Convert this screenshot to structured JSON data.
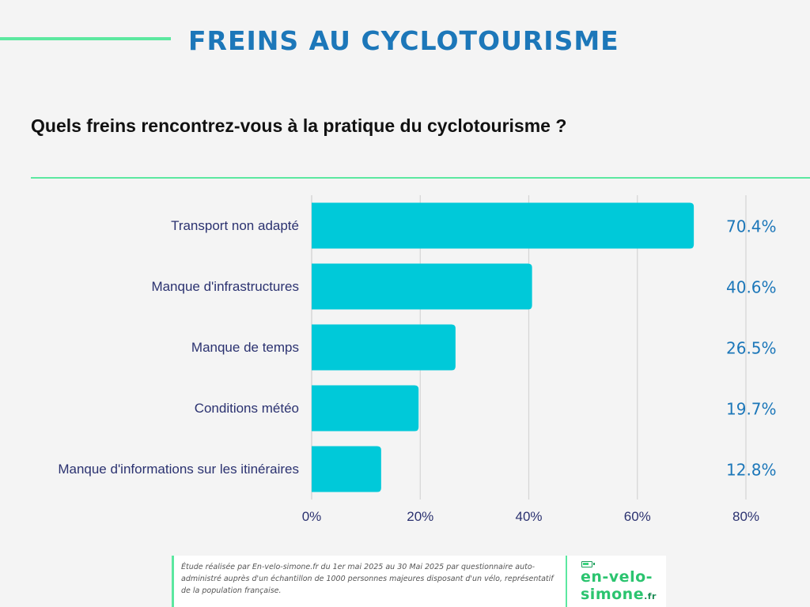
{
  "header": {
    "title": "FREINS AU CYCLOTOURISME"
  },
  "question": {
    "text": "Quels freins rencontrez-vous à la pratique du cyclotourisme ?"
  },
  "chart_data": {
    "type": "bar",
    "orientation": "horizontal",
    "categories": [
      "Transport non adapté",
      "Manque d'infrastructures",
      "Manque de temps",
      "Conditions météo",
      "Manque d'informations sur les itinéraires"
    ],
    "values": [
      70.4,
      40.6,
      26.5,
      19.7,
      12.8
    ],
    "value_labels": [
      "70.4%",
      "40.6%",
      "26.5%",
      "19.7%",
      "12.8%"
    ],
    "xticks": [
      "0%",
      "20%",
      "40%",
      "60%",
      "80%"
    ],
    "xlim": [
      0,
      80
    ],
    "grid": true,
    "legend": "none",
    "bar_color": "#00c9d9",
    "value_label_color": "#1c77b9",
    "category_label_color": "#2b3270"
  },
  "footer": {
    "source_text": "Étude réalisée par En-velo-simone.fr du 1er mai 2025 au 30 Mai 2025 par questionnaire auto-administré auprès d'un échantillon de 1000 personnes majeures disposant d'un vélo, représentatif de la population française."
  },
  "logo": {
    "line1": "en-velo-",
    "line2": "simone",
    "tld": ".fr",
    "color": "#2bc46f"
  }
}
